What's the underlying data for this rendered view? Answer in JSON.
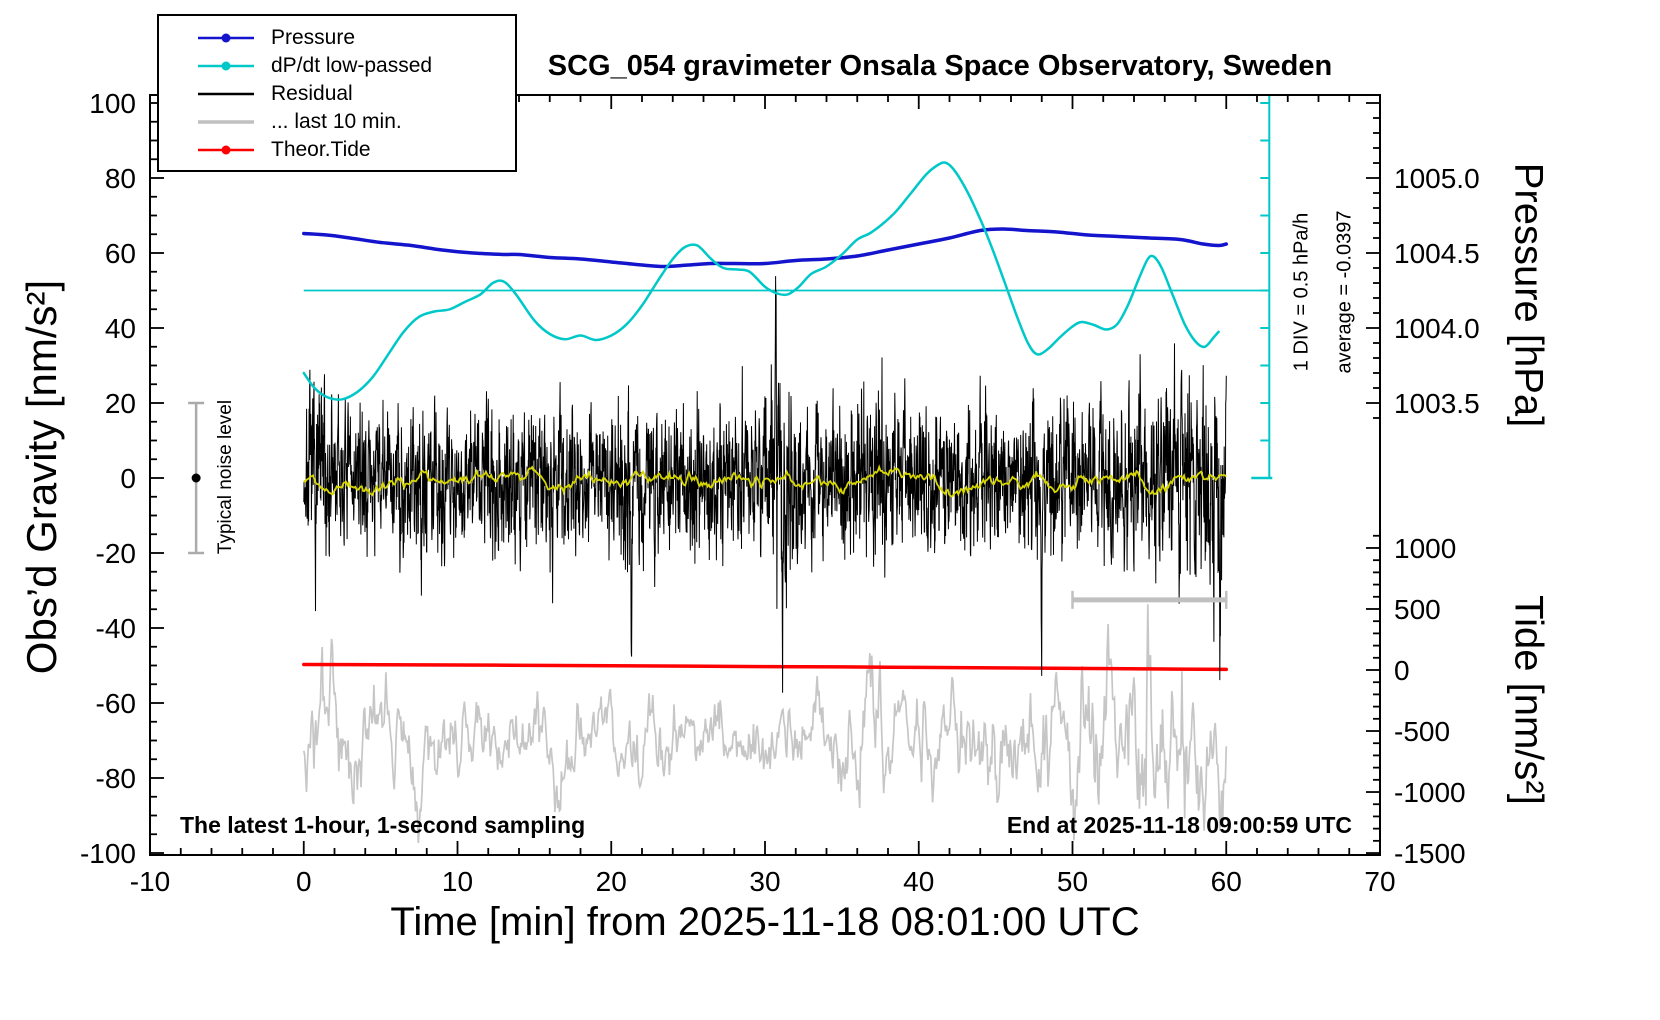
{
  "title": "SCG_054 gravimeter Onsala Space Observatory, Sweden",
  "annotations": {
    "sampling_note": "The latest 1-hour, 1-second sampling",
    "end_note": "End at 2025-11-18 09:00:59 UTC",
    "noise_label": "Typical noise level",
    "div_label": "1 DIV = 0.5 hPa/h",
    "average_label": "average = -0.0397"
  },
  "legend": {
    "items": [
      {
        "label": "Pressure",
        "color": "#1414cc",
        "marker": true,
        "width": 2.5
      },
      {
        "label": "dP/dt low-passed",
        "color": "#00c8c8",
        "marker": true,
        "width": 2.5
      },
      {
        "label": "Residual",
        "color": "#000000",
        "marker": false,
        "width": 2.5
      },
      {
        "label": "... last 10 min.",
        "color": "#c0c0c0",
        "marker": false,
        "width": 3.5
      },
      {
        "label": "Theor.Tide",
        "color": "#ff0000",
        "marker": true,
        "width": 2.5
      }
    ]
  },
  "axes": {
    "x": {
      "label": "Time [min] from 2025-11-18 08:01:00 UTC",
      "min": -10,
      "max": 70,
      "major_ticks": [
        -10,
        0,
        10,
        20,
        30,
        40,
        50,
        60,
        70
      ],
      "minor_step": 2
    },
    "y_left": {
      "label": "Obs’d Gravity [nm/s²]",
      "min": -100,
      "max": 100,
      "major_ticks": [
        100,
        80,
        60,
        40,
        20,
        0,
        -20,
        -40,
        -60,
        -80,
        -100
      ],
      "minor_step": 5
    },
    "y_right_pressure": {
      "label": "Pressure [hPa]",
      "major_ticks": [
        1005.0,
        1004.5,
        1004.0,
        1003.5
      ],
      "minor_step": 0.1,
      "gravity_at_1004": 40,
      "gravity_per_hpa": 40
    },
    "y_right_tide": {
      "label": "Tide [nm/s²]",
      "major_ticks": [
        1000,
        500,
        0,
        -500,
        -1000,
        -1500
      ],
      "minor_step": 100,
      "gravity_at_0": -51.2,
      "gravity_per_500": 16.27
    }
  },
  "markers": {
    "noise_errorbar": {
      "x": -7,
      "y_low": -20,
      "y_high": 20,
      "dot_y": 0,
      "color": "#ababab",
      "dot_color": "#000000"
    },
    "dpdt_zero_line": {
      "y_gravity": 50,
      "x_start": 0,
      "x_end": 62.8,
      "color": "#00c8c8"
    },
    "dpdt_scalebar": {
      "x": 62.8,
      "g_bottom": 0,
      "g_top": 102,
      "div_gravity": 10,
      "color": "#00c8c8"
    },
    "last10_bar": {
      "x_start": 50,
      "x_end": 60,
      "y_gravity": -32.5,
      "color": "#c0c0c0"
    }
  },
  "chart_data": {
    "type": "line",
    "title": "SCG_054 gravimeter Onsala Space Observatory, Sweden",
    "xlabel": "Time [min] from 2025-11-18 08:01:00 UTC",
    "x_range": [
      -10,
      70
    ],
    "y_left_label": "Obs’d Gravity [nm/s²]",
    "y_left_range": [
      -100,
      100
    ],
    "y_right_pressure_range_hpa": [
      1003.0,
      1005.6
    ],
    "y_right_tide_range": [
      -1500,
      1100
    ],
    "grid": false,
    "legend_position": "top-left",
    "scalebar": {
      "div_value_hpa_per_h": 0.5,
      "div_gravity_units": 10,
      "zero_line_gravity": 50,
      "average_hpa_per_h": -0.0397
    },
    "series": [
      {
        "name": "... last 10 min.",
        "unit": "nm/s2",
        "color": "#c6c6c6",
        "width": 1.7,
        "noise": {
          "seed": 3,
          "n": 1000,
          "x_start": 0,
          "x_end": 60,
          "ar": 0.8,
          "mean": -70,
          "std_envelope": [
            [
              0,
              8
            ],
            [
              1,
              9
            ],
            [
              2,
              8
            ],
            [
              4,
              7
            ],
            [
              6,
              6
            ],
            [
              8,
              8
            ],
            [
              10,
              6
            ],
            [
              12,
              6
            ],
            [
              14,
              5
            ],
            [
              16,
              6
            ],
            [
              18,
              6
            ],
            [
              20,
              5
            ],
            [
              22,
              6
            ],
            [
              24,
              6.5
            ],
            [
              26,
              6
            ],
            [
              28,
              5.5
            ],
            [
              30,
              6
            ],
            [
              32,
              5.5
            ],
            [
              34,
              6
            ],
            [
              36,
              8
            ],
            [
              37,
              10
            ],
            [
              38,
              8
            ],
            [
              39,
              6
            ],
            [
              41,
              6
            ],
            [
              43,
              6.5
            ],
            [
              45,
              7
            ],
            [
              47,
              8
            ],
            [
              49,
              9
            ],
            [
              50,
              10
            ],
            [
              51,
              11
            ],
            [
              52,
              12
            ],
            [
              53,
              11
            ],
            [
              54,
              13
            ],
            [
              55,
              14
            ],
            [
              56,
              12
            ],
            [
              57,
              15
            ],
            [
              58,
              12
            ],
            [
              59,
              10
            ],
            [
              60,
              9
            ]
          ],
          "spikes": [
            [
              37.5,
              26
            ],
            [
              50.6,
              28
            ],
            [
              54.9,
              30
            ],
            [
              57.3,
              -35
            ]
          ]
        }
      },
      {
        "name": "Theor.Tide",
        "unit": "nm/s2_tide",
        "axis": "tide",
        "color": "#ff0000",
        "width": 3.5,
        "points": [
          [
            0,
            45
          ],
          [
            5,
            43
          ],
          [
            10,
            41
          ],
          [
            15,
            38
          ],
          [
            20,
            35
          ],
          [
            25,
            32
          ],
          [
            30,
            28
          ],
          [
            35,
            25
          ],
          [
            40,
            21
          ],
          [
            45,
            17
          ],
          [
            50,
            13
          ],
          [
            55,
            9
          ],
          [
            60,
            5
          ]
        ]
      },
      {
        "name": "Residual",
        "unit": "nm/s2",
        "color": "#000000",
        "width": 1,
        "noise": {
          "seed": 7,
          "n": 3600,
          "x_start": 0,
          "x_end": 60,
          "ar": 0.45,
          "mean": 0,
          "std_envelope": [
            [
              0,
              8
            ],
            [
              0.8,
              12
            ],
            [
              1.5,
              13
            ],
            [
              2.5,
              8
            ],
            [
              4,
              8
            ],
            [
              6,
              9
            ],
            [
              7.5,
              12
            ],
            [
              8.5,
              12
            ],
            [
              9.5,
              8
            ],
            [
              11,
              8
            ],
            [
              12.5,
              10
            ],
            [
              14,
              11
            ],
            [
              15.5,
              9
            ],
            [
              17,
              10
            ],
            [
              18.5,
              8
            ],
            [
              20,
              9
            ],
            [
              21,
              11
            ],
            [
              22,
              9
            ],
            [
              23.5,
              10
            ],
            [
              25,
              9
            ],
            [
              26,
              10
            ],
            [
              27.5,
              9
            ],
            [
              29,
              10
            ],
            [
              30,
              14
            ],
            [
              30.8,
              16
            ],
            [
              31.5,
              14
            ],
            [
              32.5,
              10
            ],
            [
              34,
              9
            ],
            [
              35,
              11
            ],
            [
              36.5,
              11
            ],
            [
              38,
              10
            ],
            [
              39.5,
              9
            ],
            [
              41,
              10
            ],
            [
              42.5,
              9
            ],
            [
              44,
              10
            ],
            [
              45.5,
              9
            ],
            [
              47,
              10
            ],
            [
              48.5,
              11
            ],
            [
              50,
              9
            ],
            [
              51.5,
              10
            ],
            [
              53,
              11
            ],
            [
              54.5,
              12
            ],
            [
              56,
              12
            ],
            [
              57,
              13
            ],
            [
              58,
              14
            ],
            [
              59,
              16
            ],
            [
              60,
              15
            ]
          ],
          "spikes": [
            [
              21.3,
              -38
            ],
            [
              30.7,
              38
            ],
            [
              31.15,
              -40
            ],
            [
              37.8,
              -28
            ],
            [
              48.0,
              -40
            ],
            [
              55.4,
              -28
            ],
            [
              59.6,
              -45
            ]
          ]
        }
      },
      {
        "name": "Residual low-passed",
        "unit": "nm/s2",
        "color": "#d6d600",
        "width": 1.8,
        "noise": {
          "seed": 12,
          "n": 700,
          "x_start": 0,
          "x_end": 60,
          "ar": 0.93,
          "mean": 0,
          "std_envelope": [
            [
              0,
              1.6
            ],
            [
              60,
              1.6
            ]
          ],
          "spikes": []
        }
      },
      {
        "name": "Pressure",
        "unit": "hPa",
        "color": "#1414cc",
        "width": 3.5,
        "points": [
          [
            0,
            1004.63
          ],
          [
            1.5,
            1004.62
          ],
          [
            3,
            1004.6
          ],
          [
            5,
            1004.57
          ],
          [
            7,
            1004.55
          ],
          [
            9,
            1004.52
          ],
          [
            11,
            1004.5
          ],
          [
            13,
            1004.49
          ],
          [
            14,
            1004.49
          ],
          [
            16,
            1004.47
          ],
          [
            18,
            1004.46
          ],
          [
            20,
            1004.44
          ],
          [
            22,
            1004.42
          ],
          [
            23.5,
            1004.41
          ],
          [
            25,
            1004.42
          ],
          [
            26.5,
            1004.43
          ],
          [
            28,
            1004.43
          ],
          [
            30,
            1004.43
          ],
          [
            32,
            1004.45
          ],
          [
            34,
            1004.46
          ],
          [
            36,
            1004.48
          ],
          [
            38,
            1004.52
          ],
          [
            40,
            1004.56
          ],
          [
            42,
            1004.6
          ],
          [
            44,
            1004.65
          ],
          [
            45.5,
            1004.66
          ],
          [
            47,
            1004.65
          ],
          [
            49,
            1004.64
          ],
          [
            51,
            1004.62
          ],
          [
            53,
            1004.61
          ],
          [
            55,
            1004.6
          ],
          [
            57,
            1004.59
          ],
          [
            58.5,
            1004.56
          ],
          [
            59.5,
            1004.55
          ],
          [
            60,
            1004.56
          ]
        ]
      },
      {
        "name": "dP/dt low-passed",
        "unit": "hPa/h",
        "color": "#00c8c8",
        "width": 2.5,
        "zero_gravity": 50,
        "gravity_per_unit": 20,
        "points": [
          [
            0,
            -1.1
          ],
          [
            0.7,
            -1.3
          ],
          [
            1.5,
            -1.42
          ],
          [
            2.5,
            -1.45
          ],
          [
            3.5,
            -1.35
          ],
          [
            4.5,
            -1.15
          ],
          [
            5.5,
            -0.85
          ],
          [
            6.5,
            -0.55
          ],
          [
            7.5,
            -0.35
          ],
          [
            8.5,
            -0.28
          ],
          [
            9.5,
            -0.25
          ],
          [
            10.5,
            -0.15
          ],
          [
            11.5,
            -0.05
          ],
          [
            12.3,
            0.1
          ],
          [
            13,
            0.12
          ],
          [
            13.8,
            -0.05
          ],
          [
            15,
            -0.4
          ],
          [
            16,
            -0.58
          ],
          [
            17,
            -0.65
          ],
          [
            18,
            -0.6
          ],
          [
            19,
            -0.66
          ],
          [
            20,
            -0.6
          ],
          [
            21,
            -0.45
          ],
          [
            22,
            -0.2
          ],
          [
            23,
            0.12
          ],
          [
            24,
            0.42
          ],
          [
            24.8,
            0.58
          ],
          [
            25.6,
            0.6
          ],
          [
            26.5,
            0.42
          ],
          [
            27.3,
            0.3
          ],
          [
            28.2,
            0.28
          ],
          [
            29,
            0.25
          ],
          [
            30,
            0.05
          ],
          [
            30.8,
            -0.04
          ],
          [
            31.5,
            -0.05
          ],
          [
            32.2,
            0.05
          ],
          [
            33,
            0.22
          ],
          [
            34,
            0.32
          ],
          [
            35,
            0.48
          ],
          [
            36,
            0.68
          ],
          [
            36.8,
            0.76
          ],
          [
            37.6,
            0.88
          ],
          [
            38.5,
            1.05
          ],
          [
            39.5,
            1.3
          ],
          [
            40.5,
            1.55
          ],
          [
            41.3,
            1.68
          ],
          [
            41.8,
            1.7
          ],
          [
            42.4,
            1.58
          ],
          [
            43.2,
            1.3
          ],
          [
            44,
            0.95
          ],
          [
            44.8,
            0.55
          ],
          [
            45.6,
            0.1
          ],
          [
            46.4,
            -0.35
          ],
          [
            47.1,
            -0.7
          ],
          [
            47.7,
            -0.85
          ],
          [
            48.4,
            -0.78
          ],
          [
            49.2,
            -0.62
          ],
          [
            50,
            -0.48
          ],
          [
            50.6,
            -0.42
          ],
          [
            51.4,
            -0.46
          ],
          [
            52.2,
            -0.52
          ],
          [
            52.9,
            -0.45
          ],
          [
            53.6,
            -0.2
          ],
          [
            54.3,
            0.15
          ],
          [
            54.9,
            0.42
          ],
          [
            55.3,
            0.45
          ],
          [
            55.8,
            0.3
          ],
          [
            56.5,
            -0.05
          ],
          [
            57.3,
            -0.45
          ],
          [
            58,
            -0.68
          ],
          [
            58.6,
            -0.75
          ],
          [
            59.2,
            -0.62
          ],
          [
            59.5,
            -0.55
          ]
        ]
      }
    ]
  }
}
